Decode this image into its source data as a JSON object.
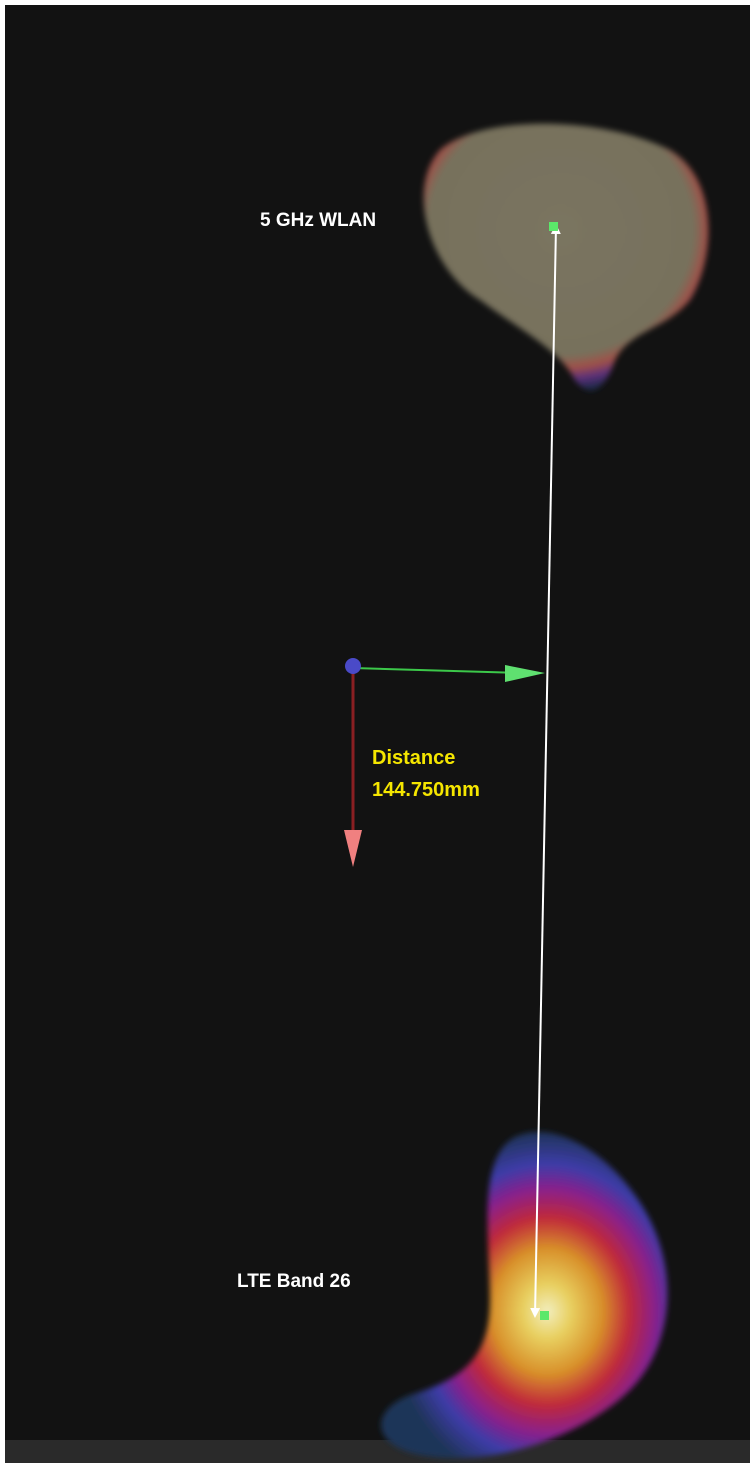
{
  "labels": {
    "top": "5 GHz WLAN",
    "bottom": "LTE Band 26"
  },
  "measurement": {
    "title": "Distance",
    "value": "144.750mm"
  }
}
